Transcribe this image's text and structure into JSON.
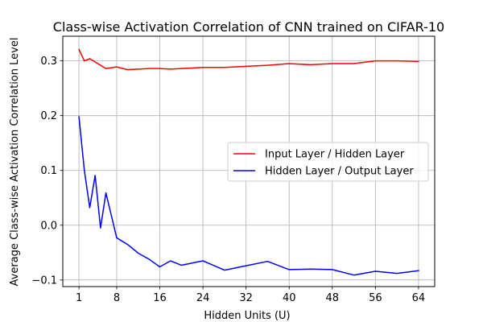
{
  "chart_data": {
    "type": "line",
    "title": "Class-wise Activation Correlation of CNN trained on CIFAR-10",
    "xlabel": "Hidden Units (U)",
    "ylabel": "Average Class-wise Activation Correlation Level",
    "xlim": [
      -2,
      67
    ],
    "ylim": [
      -0.112,
      0.345
    ],
    "xticks": [
      1,
      8,
      16,
      24,
      32,
      40,
      48,
      56,
      64
    ],
    "yticks": [
      -0.1,
      0.0,
      0.1,
      0.2,
      0.3
    ],
    "ytick_labels": [
      "−0.1",
      "0.0",
      "0.1",
      "0.2",
      "0.3"
    ],
    "grid": true,
    "legend_position": "center-right",
    "series": [
      {
        "name": "Input Layer / Hidden Layer",
        "color": "#ff0000",
        "x": [
          1,
          2,
          3,
          4,
          5,
          6,
          8,
          10,
          12,
          14,
          16,
          18,
          20,
          22,
          24,
          28,
          32,
          36,
          40,
          44,
          48,
          52,
          56,
          60,
          64
        ],
        "y": [
          0.321,
          0.3,
          0.304,
          0.298,
          0.292,
          0.286,
          0.289,
          0.284,
          0.285,
          0.286,
          0.286,
          0.285,
          0.286,
          0.287,
          0.288,
          0.288,
          0.29,
          0.292,
          0.295,
          0.293,
          0.295,
          0.295,
          0.3,
          0.3,
          0.299
        ]
      },
      {
        "name": "Hidden Layer / Output Layer",
        "color": "#0000ff",
        "x": [
          1,
          2,
          3,
          4,
          5,
          6,
          8,
          10,
          12,
          14,
          16,
          18,
          20,
          24,
          28,
          32,
          36,
          40,
          44,
          48,
          52,
          56,
          60,
          64
        ],
        "y": [
          0.198,
          0.1,
          0.032,
          0.091,
          -0.005,
          0.059,
          -0.023,
          -0.035,
          -0.051,
          -0.062,
          -0.076,
          -0.065,
          -0.073,
          -0.065,
          -0.082,
          -0.074,
          -0.066,
          -0.081,
          -0.08,
          -0.081,
          -0.091,
          -0.084,
          -0.088,
          -0.083
        ]
      }
    ]
  }
}
